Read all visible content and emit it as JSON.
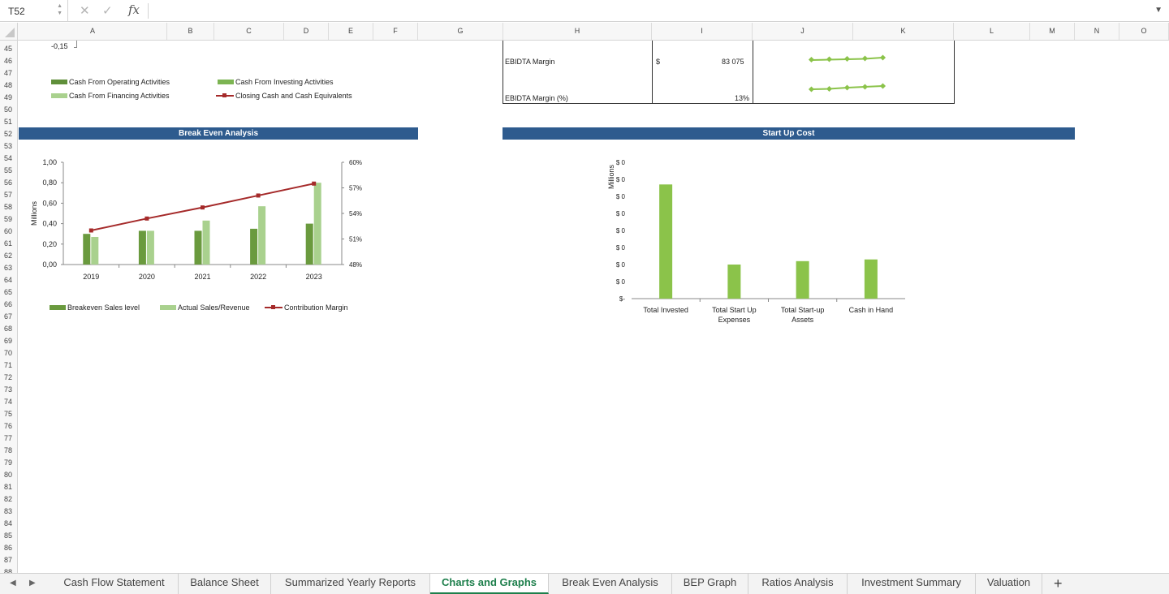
{
  "formula_bar": {
    "cell_ref": "T52",
    "cancel_icon": "✕",
    "confirm_icon": "✓",
    "fx": "fx",
    "content": ""
  },
  "columns": [
    "A",
    "B",
    "C",
    "D",
    "E",
    "F",
    "G",
    "H",
    "I",
    "J",
    "K",
    "L",
    "M",
    "N",
    "O"
  ],
  "rows": [
    "45",
    "46",
    "47",
    "48",
    "49",
    "50",
    "51",
    "52",
    "53",
    "54",
    "55",
    "56",
    "57",
    "58",
    "59",
    "60",
    "61",
    "62",
    "63",
    "64",
    "65",
    "66",
    "67",
    "68",
    "69",
    "70",
    "71",
    "72",
    "73",
    "74",
    "75",
    "76",
    "77",
    "78",
    "79",
    "80",
    "81",
    "82",
    "83",
    "84",
    "85",
    "86",
    "87",
    "88"
  ],
  "cash_flow_fragment": {
    "axis_tick": "-0,15",
    "legend": [
      {
        "label": "Cash From Operating Activities",
        "color": "#5f8f3a"
      },
      {
        "label": "Cash From Investing Activities",
        "color": "#7cb452"
      },
      {
        "label": "Cash From Financing Activities",
        "color": "#a9d18e"
      },
      {
        "label": "Closing Cash and Cash Equivalents",
        "color": "#a52a2a"
      }
    ]
  },
  "kpi_table": {
    "rows": [
      {
        "label": "EBIDTA Margin",
        "currency": "$",
        "value": "83 075"
      },
      {
        "label": "EBIDTA Margin (%)",
        "currency": "",
        "value": "13%"
      }
    ]
  },
  "sections": {
    "break_even_title": "Break Even Analysis",
    "startup_title": "Start Up Cost"
  },
  "chart_data": [
    {
      "type": "bar",
      "title": "",
      "ylabel": "Millions",
      "categories": [
        "2019",
        "2020",
        "2021",
        "2022",
        "2023"
      ],
      "ylim": [
        0,
        1.0
      ],
      "y_ticks": [
        "0,00",
        "0,20",
        "0,40",
        "0,60",
        "0,80",
        "1,00"
      ],
      "y2lim": [
        0.48,
        0.6
      ],
      "y2_ticks": [
        "48%",
        "51%",
        "54%",
        "57%",
        "60%"
      ],
      "series": [
        {
          "name": "Breakeven Sales level",
          "type": "bar",
          "color": "#6a9a3e",
          "values": [
            0.3,
            0.33,
            0.33,
            0.35,
            0.4
          ]
        },
        {
          "name": "Actual Sales/Revenue",
          "type": "bar",
          "color": "#a9d18e",
          "values": [
            0.27,
            0.33,
            0.43,
            0.57,
            0.8
          ]
        },
        {
          "name": "Contribution Margin",
          "type": "line",
          "axis": "y2",
          "color": "#a52a2a",
          "values": [
            0.52,
            0.534,
            0.547,
            0.561,
            0.575
          ]
        }
      ],
      "legend_position": "bottom"
    },
    {
      "type": "bar",
      "title": "",
      "ylabel": "Millions",
      "categories": [
        "Total Invested",
        "Total Start Up Expenses",
        "Total Start-up Assets",
        "Cash in Hand"
      ],
      "y_ticks": [
        "$-",
        "$ 0",
        "$ 0",
        "$ 0",
        "$ 0",
        "$ 0",
        "$ 0",
        "$ 0",
        "$ 0"
      ],
      "values": [
        0.67,
        0.2,
        0.22,
        0.23
      ],
      "ylim": [
        0,
        0.8
      ],
      "color": "#8bc34a"
    }
  ],
  "tabs": [
    {
      "label": "Cash Flow Statement",
      "active": false
    },
    {
      "label": "Balance Sheet",
      "active": false
    },
    {
      "label": "Summarized Yearly Reports",
      "active": false
    },
    {
      "label": "Charts and Graphs",
      "active": true
    },
    {
      "label": "Break Even Analysis",
      "active": false
    },
    {
      "label": "BEP Graph",
      "active": false
    },
    {
      "label": "Ratios Analysis",
      "active": false
    },
    {
      "label": "Investment Summary",
      "active": false
    },
    {
      "label": "Valuation",
      "active": false
    }
  ],
  "tab_add": "+"
}
